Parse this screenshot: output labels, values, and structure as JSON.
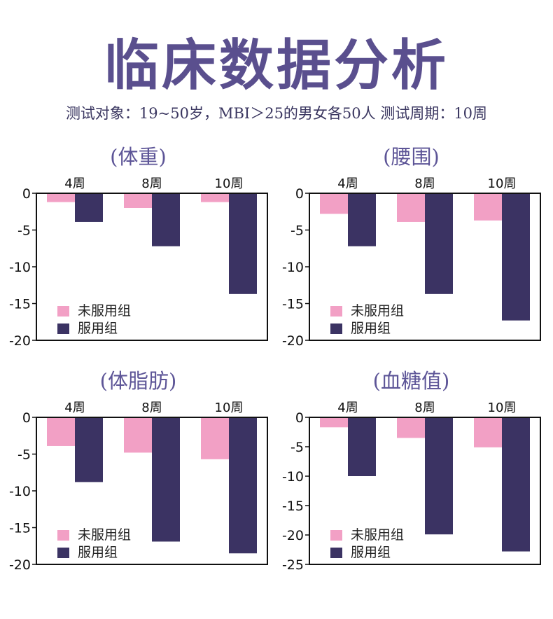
{
  "header": {
    "title": "临床数据分析",
    "subtitle": "测试对象：19~50岁，MBI＞25的男女各50人  测试周期：10周"
  },
  "colors": {
    "untreated": "#f2a0c5",
    "treated": "#3b3363",
    "title": "#5a4f8e"
  },
  "chart_data": [
    {
      "type": "bar",
      "title": "(体重)",
      "categories": [
        "4周",
        "8周",
        "10周"
      ],
      "series": [
        {
          "name": "未服用组",
          "values": [
            -1.2,
            -2.0,
            -1.2
          ]
        },
        {
          "name": "服用组",
          "values": [
            -3.9,
            -7.2,
            -13.7
          ]
        }
      ],
      "ylim": [
        -20,
        0
      ],
      "yticks": [
        "0",
        "-5",
        "-10",
        "-15",
        "-20"
      ],
      "ytick_values": [
        0,
        -5,
        -10,
        -15,
        -20
      ],
      "legend": "bottom-left",
      "xaxis_position": "top"
    },
    {
      "type": "bar",
      "title": "(腰围)",
      "categories": [
        "4周",
        "8周",
        "10周"
      ],
      "series": [
        {
          "name": "未服用组",
          "values": [
            -2.8,
            -3.9,
            -3.7
          ]
        },
        {
          "name": "服用组",
          "values": [
            -7.2,
            -13.7,
            -17.3
          ]
        }
      ],
      "ylim": [
        -20,
        0
      ],
      "yticks": [
        "0",
        "-5",
        "-10",
        "-15",
        "-20"
      ],
      "ytick_values": [
        0,
        -5,
        -10,
        -15,
        -20
      ],
      "legend": "bottom-left",
      "xaxis_position": "top"
    },
    {
      "type": "bar",
      "title": "(体脂肪)",
      "categories": [
        "4周",
        "8周",
        "10周"
      ],
      "series": [
        {
          "name": "未服用组",
          "values": [
            -3.9,
            -4.8,
            -5.7
          ]
        },
        {
          "name": "服用组",
          "values": [
            -8.8,
            -16.9,
            -18.5
          ]
        }
      ],
      "ylim": [
        -20,
        0
      ],
      "yticks": [
        "0",
        "-5",
        "-10",
        "-15",
        "-20"
      ],
      "ytick_values": [
        0,
        -5,
        -10,
        -15,
        -20
      ],
      "legend": "bottom-left",
      "xaxis_position": "top"
    },
    {
      "type": "bar",
      "title": "(血糖值)",
      "categories": [
        "4周",
        "8周",
        "10周"
      ],
      "series": [
        {
          "name": "未服用组",
          "values": [
            -1.7,
            -3.5,
            -5.1
          ]
        },
        {
          "name": "服用组",
          "values": [
            -10.0,
            -19.9,
            -22.8
          ]
        }
      ],
      "ylim": [
        -25,
        0
      ],
      "yticks": [
        "0",
        "-5",
        "-10",
        "-15",
        "-20",
        "-25"
      ],
      "ytick_values": [
        0,
        -5,
        -10,
        -15,
        -20,
        -25
      ],
      "legend": "bottom-left",
      "xaxis_position": "top"
    }
  ]
}
